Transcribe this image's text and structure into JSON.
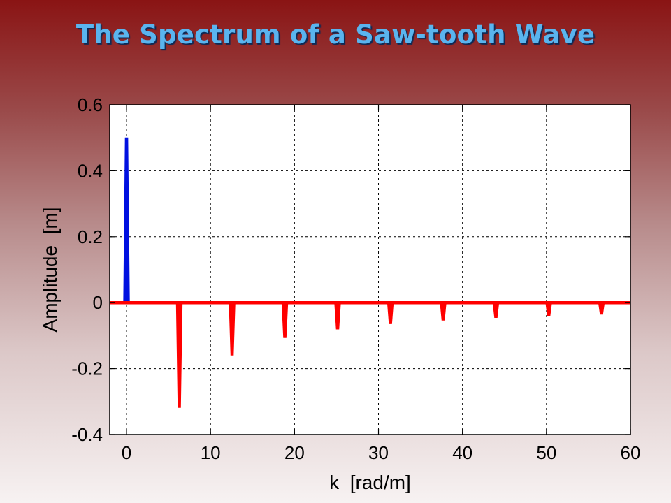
{
  "slide": {
    "title": "The Spectrum of a Saw-tooth Wave"
  },
  "chart_data": {
    "type": "bar",
    "title": "The Spectrum of a Saw-tooth Wave",
    "xlabel": "k  [rad/m]",
    "ylabel": "Amplitude  [m]",
    "xlim": [
      -2,
      60
    ],
    "ylim": [
      -0.4,
      0.6
    ],
    "xticks": [
      0,
      10,
      20,
      30,
      40,
      50,
      60
    ],
    "yticks": [
      -0.4,
      -0.2,
      0,
      0.2,
      0.4,
      0.6
    ],
    "grid": true,
    "series": [
      {
        "color": "#0010e0",
        "values": [
          [
            0,
            0.5
          ]
        ]
      },
      {
        "color": "#ff0000",
        "values": [
          [
            6.28,
            -0.318
          ],
          [
            12.57,
            -0.159
          ],
          [
            18.85,
            -0.106
          ],
          [
            25.13,
            -0.08
          ],
          [
            31.42,
            -0.064
          ],
          [
            37.7,
            -0.053
          ],
          [
            43.98,
            -0.045
          ],
          [
            50.27,
            -0.04
          ],
          [
            56.55,
            -0.035
          ]
        ]
      }
    ],
    "baseline": {
      "color": "#ff0000",
      "y": 0
    }
  }
}
